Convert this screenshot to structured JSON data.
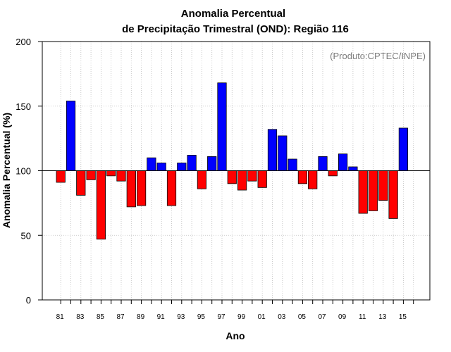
{
  "chart_data": {
    "type": "bar",
    "title": "Anomalia Percentual",
    "subtitle": "de Precipitação Trimestral (OND): Região 116",
    "xlabel": "Ano",
    "ylabel": "Anomalia Percentual (%)",
    "credit": "(Produto:CPTEC/INPE)",
    "ylim": [
      0,
      200
    ],
    "yticks": [
      0,
      50,
      100,
      150,
      200
    ],
    "baseline": 100,
    "grid": true,
    "colors": {
      "above": "#0000ff",
      "below": "#ff0000",
      "outline": "#000000",
      "grid": "#bfbfbf"
    },
    "categories": [
      "81",
      "82",
      "83",
      "84",
      "85",
      "86",
      "87",
      "88",
      "89",
      "90",
      "91",
      "92",
      "93",
      "94",
      "95",
      "96",
      "97",
      "98",
      "99",
      "00",
      "01",
      "02",
      "03",
      "04",
      "05",
      "06",
      "07",
      "08",
      "09",
      "10",
      "11",
      "12",
      "13",
      "14",
      "15"
    ],
    "xtick_labels": [
      "81",
      "83",
      "85",
      "87",
      "89",
      "91",
      "93",
      "95",
      "97",
      "99",
      "01",
      "03",
      "05",
      "07",
      "09",
      "11",
      "13",
      "15"
    ],
    "values": [
      91,
      154,
      81,
      93,
      47,
      96,
      92,
      72,
      73,
      110,
      106,
      73,
      106,
      112,
      86,
      111,
      168,
      90,
      85,
      92,
      87,
      132,
      127,
      109,
      90,
      86,
      111,
      96,
      113,
      103,
      67,
      69,
      77,
      63,
      133
    ]
  }
}
